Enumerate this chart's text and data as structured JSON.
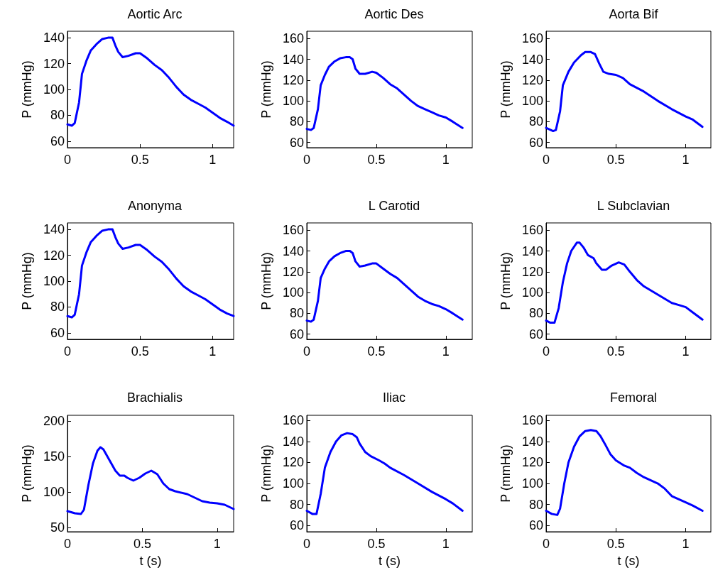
{
  "chart_data": [
    {
      "type": "line",
      "title": "Aortic Arc",
      "ylabel": "P (mmHg)",
      "xlim": [
        0,
        1.145
      ],
      "ylim": [
        55,
        145
      ],
      "xticks": [
        0,
        0.5,
        1
      ],
      "yticks": [
        60,
        80,
        100,
        120,
        140
      ],
      "grid": false,
      "marker": "none",
      "line_style": "solid",
      "series": [
        {
          "color": "#0000ff",
          "x": [
            0,
            0.03,
            0.05,
            0.08,
            0.1,
            0.13,
            0.16,
            0.2,
            0.24,
            0.28,
            0.31,
            0.33,
            0.35,
            0.38,
            0.42,
            0.47,
            0.5,
            0.55,
            0.6,
            0.65,
            0.7,
            0.75,
            0.8,
            0.85,
            0.9,
            0.95,
            1.0,
            1.05,
            1.1,
            1.145
          ],
          "values": [
            73,
            72,
            74,
            90,
            112,
            122,
            130,
            135,
            139,
            140,
            140,
            134,
            129,
            125,
            126,
            128,
            128,
            124,
            119,
            115,
            109,
            102,
            96,
            92,
            89,
            86,
            82,
            78,
            75,
            72
          ]
        }
      ]
    },
    {
      "type": "line",
      "title": "Aortic Des",
      "ylabel": "P (mmHg)",
      "xlim": [
        0,
        1.19
      ],
      "ylim": [
        55,
        167
      ],
      "xticks": [
        0,
        0.5,
        1
      ],
      "yticks": [
        60,
        80,
        100,
        120,
        140,
        160
      ],
      "grid": false,
      "marker": "none",
      "line_style": "solid",
      "series": [
        {
          "color": "#0000ff",
          "x": [
            0,
            0.03,
            0.05,
            0.08,
            0.1,
            0.13,
            0.16,
            0.2,
            0.24,
            0.28,
            0.31,
            0.33,
            0.35,
            0.38,
            0.42,
            0.47,
            0.5,
            0.55,
            0.6,
            0.65,
            0.7,
            0.75,
            0.8,
            0.85,
            0.9,
            0.95,
            1.0,
            1.05,
            1.12
          ],
          "values": [
            73,
            72,
            74,
            92,
            115,
            125,
            133,
            138,
            141,
            142,
            142,
            140,
            131,
            126,
            126,
            128,
            127,
            122,
            116,
            112,
            106,
            100,
            95,
            92,
            89,
            86,
            84,
            80,
            74
          ]
        }
      ]
    },
    {
      "type": "line",
      "title": "Aorta Bif",
      "ylabel": "P (mmHg)",
      "xlim": [
        0,
        1.18
      ],
      "ylim": [
        55,
        167
      ],
      "xticks": [
        0,
        0.5,
        1
      ],
      "yticks": [
        60,
        80,
        100,
        120,
        140,
        160
      ],
      "grid": false,
      "marker": "none",
      "line_style": "solid",
      "series": [
        {
          "color": "#0000ff",
          "x": [
            0,
            0.05,
            0.07,
            0.1,
            0.12,
            0.16,
            0.2,
            0.25,
            0.28,
            0.32,
            0.35,
            0.38,
            0.41,
            0.45,
            0.5,
            0.55,
            0.6,
            0.7,
            0.8,
            0.9,
            1.0,
            1.05,
            1.12
          ],
          "values": [
            74,
            71,
            72,
            90,
            115,
            128,
            137,
            144,
            147,
            147,
            145,
            136,
            128,
            126,
            125,
            122,
            116,
            109,
            100,
            92,
            85,
            82,
            75
          ]
        }
      ]
    },
    {
      "type": "line",
      "title": "Anonyma",
      "ylabel": "P (mmHg)",
      "xlim": [
        0,
        1.145
      ],
      "ylim": [
        55,
        145
      ],
      "xticks": [
        0,
        0.5,
        1
      ],
      "yticks": [
        60,
        80,
        100,
        120,
        140
      ],
      "grid": false,
      "marker": "none",
      "line_style": "solid",
      "series": [
        {
          "color": "#0000ff",
          "x": [
            0,
            0.03,
            0.05,
            0.08,
            0.1,
            0.13,
            0.16,
            0.2,
            0.24,
            0.28,
            0.31,
            0.33,
            0.35,
            0.38,
            0.42,
            0.47,
            0.5,
            0.55,
            0.6,
            0.65,
            0.7,
            0.75,
            0.8,
            0.85,
            0.9,
            0.95,
            1.0,
            1.05,
            1.1,
            1.145
          ],
          "values": [
            73,
            72,
            74,
            90,
            112,
            122,
            130,
            135,
            139,
            140,
            140,
            134,
            129,
            125,
            126,
            128,
            128,
            124,
            119,
            115,
            109,
            102,
            96,
            92,
            89,
            86,
            82,
            78,
            75,
            73
          ]
        }
      ]
    },
    {
      "type": "line",
      "title": "L Carotid",
      "ylabel": "P (mmHg)",
      "xlim": [
        0,
        1.19
      ],
      "ylim": [
        55,
        167
      ],
      "xticks": [
        0,
        0.5,
        1
      ],
      "yticks": [
        60,
        80,
        100,
        120,
        140,
        160
      ],
      "grid": false,
      "marker": "none",
      "line_style": "solid",
      "series": [
        {
          "color": "#0000ff",
          "x": [
            0,
            0.03,
            0.05,
            0.08,
            0.1,
            0.13,
            0.16,
            0.2,
            0.24,
            0.28,
            0.31,
            0.33,
            0.35,
            0.38,
            0.42,
            0.47,
            0.5,
            0.55,
            0.6,
            0.65,
            0.7,
            0.75,
            0.8,
            0.85,
            0.9,
            0.95,
            1.0,
            1.05,
            1.12
          ],
          "values": [
            73,
            72,
            74,
            92,
            114,
            123,
            130,
            135,
            138,
            140,
            140,
            138,
            130,
            125,
            126,
            128,
            128,
            123,
            118,
            114,
            108,
            102,
            96,
            92,
            89,
            87,
            84,
            80,
            74
          ]
        }
      ]
    },
    {
      "type": "line",
      "title": "L Subclavian",
      "ylabel": "P (mmHg)",
      "xlim": [
        0,
        1.18
      ],
      "ylim": [
        55,
        167
      ],
      "xticks": [
        0,
        0.5,
        1
      ],
      "yticks": [
        60,
        80,
        100,
        120,
        140,
        160
      ],
      "grid": false,
      "marker": "none",
      "line_style": "solid",
      "series": [
        {
          "color": "#0000ff",
          "x": [
            0,
            0.03,
            0.06,
            0.09,
            0.12,
            0.15,
            0.18,
            0.22,
            0.24,
            0.27,
            0.3,
            0.34,
            0.36,
            0.4,
            0.43,
            0.47,
            0.52,
            0.56,
            0.6,
            0.65,
            0.7,
            0.8,
            0.9,
            0.95,
            1.0,
            1.05,
            1.12
          ],
          "values": [
            73,
            71,
            71,
            85,
            110,
            128,
            140,
            148,
            148,
            143,
            136,
            133,
            128,
            122,
            122,
            126,
            129,
            127,
            120,
            112,
            106,
            98,
            90,
            88,
            86,
            81,
            74
          ]
        }
      ]
    },
    {
      "type": "line",
      "title": "Brachialis",
      "xlabel": "t (s)",
      "ylabel": "P (mmHg)",
      "xlim": [
        0,
        1.11
      ],
      "ylim": [
        44,
        208
      ],
      "xticks": [
        0,
        0.5,
        1
      ],
      "yticks": [
        50,
        100,
        150,
        200
      ],
      "grid": false,
      "marker": "none",
      "line_style": "solid",
      "series": [
        {
          "color": "#0000ff",
          "x": [
            0,
            0.05,
            0.09,
            0.11,
            0.14,
            0.17,
            0.2,
            0.22,
            0.24,
            0.28,
            0.32,
            0.35,
            0.38,
            0.4,
            0.44,
            0.48,
            0.52,
            0.56,
            0.6,
            0.64,
            0.68,
            0.72,
            0.8,
            0.85,
            0.9,
            0.95,
            1.0,
            1.05,
            1.11
          ],
          "values": [
            73,
            70,
            69,
            75,
            110,
            140,
            158,
            163,
            160,
            145,
            130,
            123,
            123,
            120,
            116,
            120,
            126,
            130,
            125,
            112,
            104,
            101,
            97,
            92,
            87,
            85,
            84,
            82,
            76
          ]
        }
      ]
    },
    {
      "type": "line",
      "title": "Iliac",
      "xlabel": "t (s)",
      "ylabel": "P (mmHg)",
      "xlim": [
        0,
        1.19
      ],
      "ylim": [
        54,
        165
      ],
      "xticks": [
        0,
        0.5,
        1
      ],
      "yticks": [
        60,
        80,
        100,
        120,
        140,
        160
      ],
      "grid": false,
      "marker": "none",
      "line_style": "solid",
      "series": [
        {
          "color": "#0000ff",
          "x": [
            0,
            0.04,
            0.07,
            0.1,
            0.13,
            0.17,
            0.21,
            0.25,
            0.29,
            0.33,
            0.36,
            0.38,
            0.42,
            0.46,
            0.52,
            0.56,
            0.6,
            0.7,
            0.8,
            0.9,
            1.0,
            1.05,
            1.12
          ],
          "values": [
            74,
            71,
            71,
            90,
            115,
            130,
            140,
            146,
            148,
            147,
            144,
            138,
            130,
            126,
            122,
            119,
            115,
            108,
            100,
            92,
            85,
            81,
            74
          ]
        }
      ]
    },
    {
      "type": "line",
      "title": "Femoral",
      "xlabel": "t (s)",
      "ylabel": "P (mmHg)",
      "xlim": [
        0,
        1.18
      ],
      "ylim": [
        54,
        165
      ],
      "xticks": [
        0,
        0.5,
        1
      ],
      "yticks": [
        60,
        80,
        100,
        120,
        140,
        160
      ],
      "grid": false,
      "marker": "none",
      "line_style": "solid",
      "series": [
        {
          "color": "#0000ff",
          "x": [
            0,
            0.04,
            0.08,
            0.1,
            0.13,
            0.16,
            0.2,
            0.24,
            0.28,
            0.32,
            0.36,
            0.39,
            0.42,
            0.46,
            0.5,
            0.56,
            0.6,
            0.65,
            0.7,
            0.8,
            0.85,
            0.9,
            1.0,
            1.05,
            1.12
          ],
          "values": [
            74,
            71,
            70,
            76,
            100,
            120,
            135,
            145,
            150,
            151,
            150,
            145,
            138,
            128,
            122,
            117,
            115,
            110,
            106,
            100,
            95,
            88,
            82,
            79,
            74
          ]
        }
      ]
    }
  ]
}
